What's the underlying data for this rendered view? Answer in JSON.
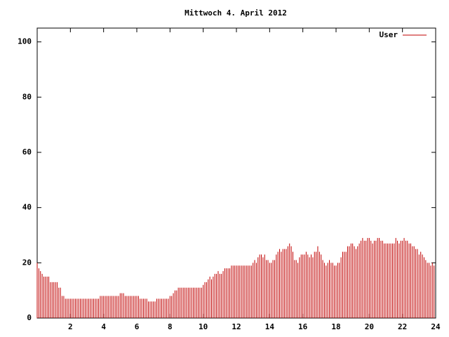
{
  "chart_data": {
    "type": "impulse",
    "title": "Mittwoch 4. April 2012",
    "series": [
      {
        "name": "User",
        "color": "#c00000",
        "x": [
          0,
          0.1,
          0.2,
          0.3,
          0.4,
          0.5,
          0.6,
          0.7,
          0.8,
          0.9,
          1,
          1.1,
          1.2,
          1.3,
          1.4,
          1.5,
          1.6,
          1.7,
          1.8,
          1.9,
          2,
          2.1,
          2.2,
          2.3,
          2.4,
          2.5,
          2.6,
          2.7,
          2.8,
          2.9,
          3,
          3.1,
          3.2,
          3.3,
          3.4,
          3.5,
          3.6,
          3.7,
          3.8,
          3.9,
          4,
          4.1,
          4.2,
          4.3,
          4.4,
          4.5,
          4.6,
          4.7,
          4.8,
          4.9,
          5,
          5.1,
          5.2,
          5.3,
          5.4,
          5.5,
          5.6,
          5.7,
          5.8,
          5.9,
          6,
          6.1,
          6.2,
          6.3,
          6.4,
          6.5,
          6.6,
          6.7,
          6.8,
          6.9,
          7,
          7.1,
          7.2,
          7.3,
          7.4,
          7.5,
          7.6,
          7.7,
          7.8,
          7.9,
          8,
          8.1,
          8.2,
          8.3,
          8.4,
          8.5,
          8.6,
          8.7,
          8.8,
          8.9,
          9,
          9.1,
          9.2,
          9.3,
          9.4,
          9.5,
          9.6,
          9.7,
          9.8,
          9.9,
          10,
          10.1,
          10.2,
          10.3,
          10.4,
          10.5,
          10.6,
          10.7,
          10.8,
          10.9,
          11,
          11.1,
          11.2,
          11.3,
          11.4,
          11.5,
          11.6,
          11.7,
          11.8,
          11.9,
          12,
          12.1,
          12.2,
          12.3,
          12.4,
          12.5,
          12.6,
          12.7,
          12.8,
          12.9,
          13,
          13.1,
          13.2,
          13.3,
          13.4,
          13.5,
          13.6,
          13.7,
          13.8,
          13.9,
          14,
          14.1,
          14.2,
          14.3,
          14.4,
          14.5,
          14.6,
          14.7,
          14.8,
          14.9,
          15,
          15.1,
          15.2,
          15.3,
          15.4,
          15.5,
          15.6,
          15.7,
          15.8,
          15.9,
          16,
          16.1,
          16.2,
          16.3,
          16.4,
          16.5,
          16.6,
          16.7,
          16.8,
          16.9,
          17,
          17.1,
          17.2,
          17.3,
          17.4,
          17.5,
          17.6,
          17.7,
          17.8,
          17.9,
          18,
          18.1,
          18.2,
          18.3,
          18.4,
          18.5,
          18.6,
          18.7,
          18.8,
          18.9,
          19,
          19.1,
          19.2,
          19.3,
          19.4,
          19.5,
          19.6,
          19.7,
          19.8,
          19.9,
          20,
          20.1,
          20.2,
          20.3,
          20.4,
          20.5,
          20.6,
          20.7,
          20.8,
          20.9,
          21,
          21.1,
          21.2,
          21.3,
          21.4,
          21.5,
          21.6,
          21.7,
          21.8,
          21.9,
          22,
          22.1,
          22.2,
          22.3,
          22.4,
          22.5,
          22.6,
          22.7,
          22.8,
          22.9,
          23,
          23.1,
          23.2,
          23.3,
          23.4,
          23.5,
          23.6,
          23.7,
          23.8,
          23.9
        ],
        "values": [
          20,
          18,
          17,
          16,
          15,
          15,
          15,
          15,
          13,
          13,
          13,
          13,
          13,
          11,
          11,
          8,
          8,
          7,
          7,
          7,
          7,
          7,
          7,
          7,
          7,
          7,
          7,
          7,
          7,
          7,
          7,
          7,
          7,
          7,
          7,
          7,
          7,
          7,
          8,
          8,
          8,
          8,
          8,
          8,
          8,
          8,
          8,
          8,
          8,
          8,
          9,
          9,
          9,
          8,
          8,
          8,
          8,
          8,
          8,
          8,
          8,
          8,
          7,
          7,
          7,
          7,
          7,
          6,
          6,
          6,
          6,
          6,
          7,
          7,
          7,
          7,
          7,
          7,
          7,
          7,
          8,
          8,
          9,
          10,
          10,
          11,
          11,
          11,
          11,
          11,
          11,
          11,
          11,
          11,
          11,
          11,
          11,
          11,
          11,
          11,
          12,
          13,
          13,
          14,
          15,
          14,
          15,
          16,
          16,
          17,
          16,
          16,
          17,
          18,
          18,
          18,
          18,
          19,
          19,
          19,
          19,
          19,
          19,
          19,
          19,
          19,
          19,
          19,
          19,
          19,
          20,
          21,
          20,
          22,
          23,
          23,
          22,
          23,
          21,
          21,
          20,
          20,
          21,
          21,
          23,
          24,
          25,
          24,
          25,
          25,
          25,
          26,
          27,
          26,
          24,
          21,
          21,
          20,
          22,
          23,
          23,
          23,
          24,
          23,
          22,
          23,
          22,
          24,
          24,
          26,
          24,
          23,
          21,
          20,
          19,
          20,
          21,
          20,
          20,
          19,
          19,
          20,
          20,
          22,
          24,
          24,
          24,
          26,
          26,
          27,
          27,
          26,
          25,
          26,
          27,
          28,
          29,
          28,
          28,
          29,
          29,
          28,
          27,
          28,
          28,
          29,
          29,
          28,
          28,
          27,
          27,
          27,
          27,
          27,
          27,
          27,
          29,
          28,
          27,
          28,
          28,
          29,
          28,
          28,
          27,
          27,
          26,
          26,
          25,
          25,
          23,
          24,
          23,
          22,
          21,
          20,
          20,
          19,
          20,
          19
        ]
      }
    ],
    "xlim": [
      0,
      24
    ],
    "xticks": [
      2,
      4,
      6,
      8,
      10,
      12,
      14,
      16,
      18,
      20,
      22,
      24
    ],
    "ylim": [
      0,
      105
    ],
    "yticks": [
      0,
      20,
      40,
      60,
      80,
      100
    ],
    "legend": "top-right"
  }
}
